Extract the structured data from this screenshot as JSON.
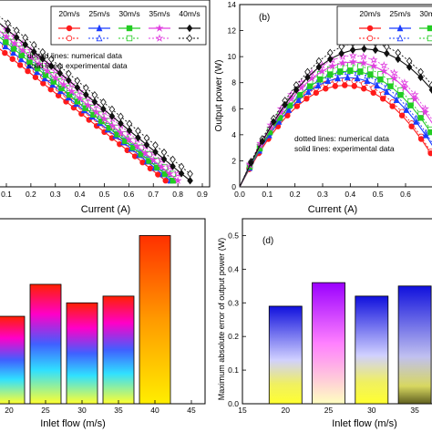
{
  "chart_data": [
    {
      "panel": "a",
      "type": "line",
      "xlabel": "Current (A)",
      "ylabel": "",
      "x_ticks": [
        "0.1",
        "0.2",
        "0.3",
        "0.4",
        "0.5",
        "0.6",
        "0.7",
        "0.8",
        "0.9"
      ],
      "xlim": [
        0.1,
        0.9
      ],
      "ylim": [
        0,
        14
      ],
      "annotation_lines": [
        "dotted lines: numerical data",
        "solid lines: experimental data"
      ],
      "legend": {
        "position": "top-right",
        "labels": [
          "20m/s",
          "25m/s",
          "30m/s",
          "35m/s",
          "40m/s"
        ],
        "colors": [
          "#ff1a1a",
          "#1a3cff",
          "#22cc22",
          "#e040e0",
          "#111111"
        ]
      },
      "series": [
        {
          "name": "20m/s",
          "color": "#ff1a1a",
          "marker": "circle",
          "x0": 0.0,
          "y0": 12.3,
          "x1": 0.75,
          "y1": 0.5
        },
        {
          "name": "25m/s",
          "color": "#1a3cff",
          "marker": "triangle",
          "x0": 0.0,
          "y0": 12.9,
          "x1": 0.77,
          "y1": 0.5
        },
        {
          "name": "30m/s",
          "color": "#22cc22",
          "marker": "square",
          "x0": 0.0,
          "y0": 13.3,
          "x1": 0.78,
          "y1": 0.5
        },
        {
          "name": "35m/s",
          "color": "#e040e0",
          "marker": "star",
          "x0": 0.0,
          "y0": 13.8,
          "x1": 0.8,
          "y1": 0.5
        },
        {
          "name": "40m/s",
          "color": "#111111",
          "marker": "diamond",
          "x0": 0.0,
          "y0": 14.4,
          "x1": 0.85,
          "y1": 0.5
        }
      ]
    },
    {
      "panel": "b",
      "label": "(b)",
      "type": "line",
      "xlabel": "Current (A)",
      "ylabel": "Output power (W)",
      "x_ticks": [
        "0.0",
        "0.1",
        "0.2",
        "0.3",
        "0.4",
        "0.5",
        "0.6"
      ],
      "y_ticks": [
        "0",
        "2",
        "4",
        "6",
        "8",
        "10",
        "12",
        "14"
      ],
      "xlim": [
        0,
        0.7
      ],
      "ylim": [
        0,
        14
      ],
      "annotation_lines": [
        "dotted lines: numerical data",
        "solid lines: experimental data"
      ],
      "legend": {
        "position": "top-right",
        "labels": [
          "20m/s",
          "25m/s",
          "30m/s",
          "35m/s",
          "40m/s"
        ],
        "colors": [
          "#ff1a1a",
          "#1a3cff",
          "#22cc22",
          "#e040e0",
          "#111111"
        ]
      },
      "series": [
        {
          "name": "20m/s",
          "color": "#ff1a1a",
          "marker": "circle",
          "peak_x": 0.38,
          "peak_y": 7.8
        },
        {
          "name": "25m/s",
          "color": "#1a3cff",
          "marker": "triangle",
          "peak_x": 0.39,
          "peak_y": 8.4
        },
        {
          "name": "30m/s",
          "color": "#22cc22",
          "marker": "square",
          "peak_x": 0.4,
          "peak_y": 8.9
        },
        {
          "name": "35m/s",
          "color": "#e040e0",
          "marker": "star",
          "peak_x": 0.41,
          "peak_y": 9.6
        },
        {
          "name": "40m/s",
          "color": "#111111",
          "marker": "diamond",
          "peak_x": 0.45,
          "peak_y": 10.6
        }
      ]
    },
    {
      "panel": "c",
      "type": "bar",
      "xlabel": "Inlet flow (m/s)",
      "x_ticks": [
        "20",
        "25",
        "30",
        "35",
        "40",
        "45"
      ],
      "categories": [
        "20",
        "25",
        "30",
        "35",
        "40"
      ],
      "values": [
        0.26,
        0.355,
        0.3,
        0.32,
        0.5
      ],
      "ylim": [
        0,
        0.55
      ]
    },
    {
      "panel": "d",
      "label": "(d)",
      "type": "bar",
      "xlabel": "Inlet flow (m/s)",
      "ylabel": "Maximum absolute error of output power (W)",
      "x_ticks": [
        "15",
        "20",
        "25",
        "30",
        "35"
      ],
      "y_ticks": [
        "0.0",
        "0.1",
        "0.2",
        "0.3",
        "0.4",
        "0.5"
      ],
      "categories": [
        "20",
        "25",
        "30",
        "35"
      ],
      "values": [
        0.29,
        0.36,
        0.32,
        0.35
      ],
      "ylim": [
        0,
        0.55
      ]
    }
  ]
}
